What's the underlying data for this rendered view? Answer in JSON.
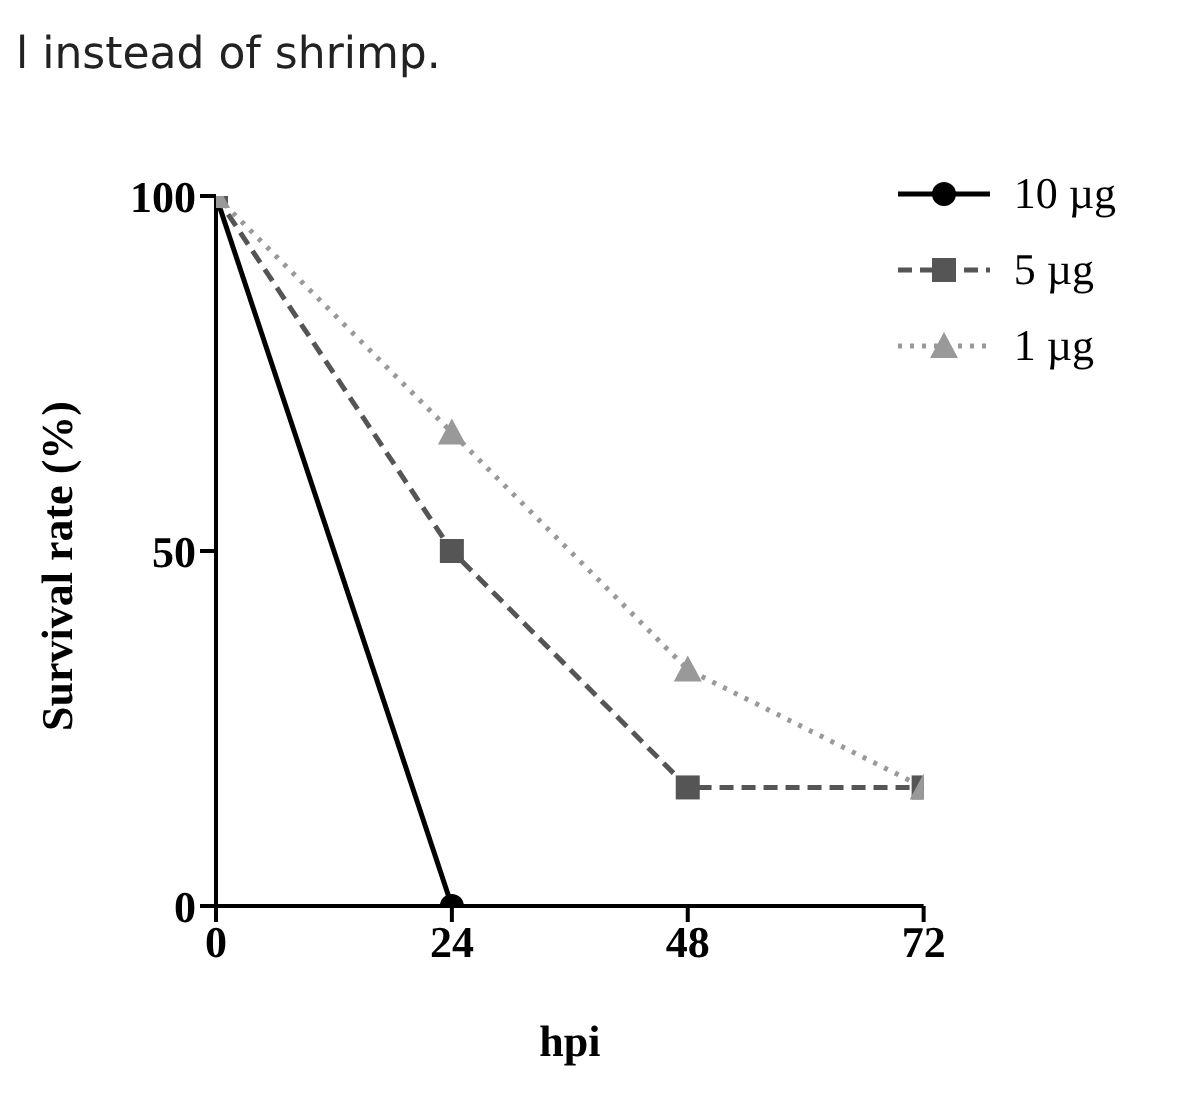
{
  "chart_data": {
    "type": "line",
    "xlabel": "hpi",
    "ylabel": "Survival rate (%)",
    "annotations": [
      "l instead of shrimp."
    ],
    "x": [
      0,
      24,
      48,
      72
    ],
    "xlim": [
      0,
      72
    ],
    "xticks": [
      0,
      24,
      48,
      72
    ],
    "ylim": [
      0,
      100
    ],
    "yticks": [
      0,
      50,
      100
    ],
    "legend": "top right",
    "series": [
      {
        "name": "10 µg",
        "color": "#000000",
        "values": [
          100,
          0,
          null,
          null
        ],
        "marker": "circle",
        "line_style": "solid"
      },
      {
        "name": "5 µg",
        "color": "#555555",
        "values": [
          100,
          50,
          16.7,
          16.7
        ],
        "marker": "square",
        "line_style": "dashed"
      },
      {
        "name": "1 µg",
        "color": "#999999",
        "values": [
          100,
          66.7,
          33.3,
          16.7
        ],
        "marker": "triangle",
        "line_style": "dotted"
      }
    ]
  }
}
